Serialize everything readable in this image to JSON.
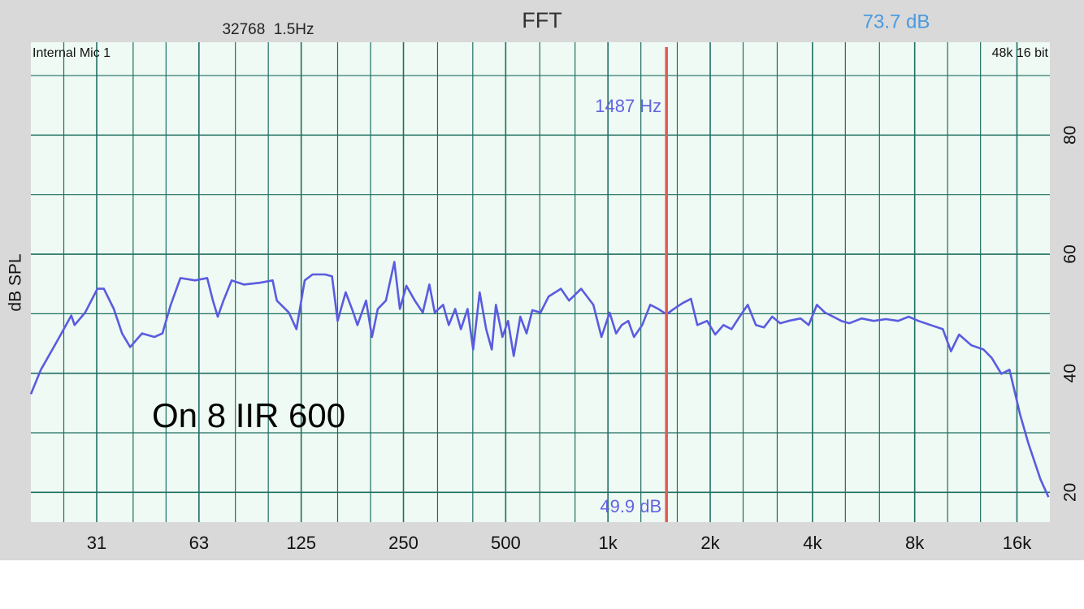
{
  "chart_data": {
    "type": "line",
    "title": "FFT",
    "header_left": "32768  1.5Hz",
    "header_right": "73.7 dB",
    "input_label": "Internal Mic 1",
    "format_label": "48k 16 bit",
    "annotation": "On 8 IIR 600",
    "y_label": "dB SPL",
    "x_scale": "log",
    "grid": true,
    "xlim": [
      20,
      20000
    ],
    "ylim": [
      15,
      95.6
    ],
    "xticks": [
      {
        "value": 31.25,
        "label": "31"
      },
      {
        "value": 62.5,
        "label": "63"
      },
      125,
      250,
      500,
      {
        "value": 1000,
        "label": "1k"
      },
      {
        "value": 2000,
        "label": "2k"
      },
      {
        "value": 4000,
        "label": "4k"
      },
      {
        "value": 8000,
        "label": "8k"
      },
      {
        "value": 16000,
        "label": "16k"
      }
    ],
    "x_minor_ticks": [
      25,
      40,
      50,
      80,
      100,
      160,
      200,
      315,
      400,
      630,
      800,
      1250,
      1600,
      2500,
      3150,
      5000,
      6300,
      10000,
      12500
    ],
    "yticks": [
      20,
      40,
      60,
      80
    ],
    "y_minor_ticks": [
      30,
      50,
      70,
      90
    ],
    "cursor": {
      "x": 1487,
      "label": "1487 Hz",
      "value": 49.9,
      "value_label": "49.9 dB",
      "color": "#e05a52"
    },
    "series": [
      {
        "color": "#5b5be0",
        "x": [
          20,
          21.4,
          23.9,
          26.3,
          26.9,
          28.9,
          31.4,
          32.8,
          35.1,
          37.1,
          39.2,
          42.5,
          46.2,
          48.8,
          51.6,
          55.1,
          60.9,
          66.1,
          68.7,
          71.0,
          73.8,
          78.0,
          84.7,
          94.6,
          103,
          106,
          115,
          121,
          128,
          135,
          147,
          154,
          160,
          169,
          178,
          183,
          194,
          202,
          210,
          222,
          235,
          244,
          255,
          270,
          285,
          298,
          309,
          327,
          340,
          355,
          369,
          386,
          401,
          419,
          438,
          455,
          468,
          489,
          508,
          528,
          552,
          576,
          599,
          633,
          669,
          727,
          768,
          834,
          906,
          957,
          1011,
          1057,
          1098,
          1148,
          1193,
          1261,
          1332,
          1407,
          1487,
          1571,
          1660,
          1755,
          1833,
          1959,
          2070,
          2188,
          2310,
          2442,
          2580,
          2726,
          2880,
          3044,
          3216,
          3399,
          3692,
          3900,
          4122,
          4354,
          4602,
          4862,
          5138,
          5580,
          6060,
          6580,
          7152,
          7680,
          8204,
          8914,
          9682,
          10230,
          10808,
          11740,
          12750,
          13472,
          14392,
          15210,
          15716,
          16340,
          17270,
          18758,
          19814
        ],
        "values": [
          36.5,
          40.6,
          45.4,
          49.7,
          48.1,
          50.2,
          54.2,
          54.2,
          50.8,
          46.7,
          44.4,
          46.7,
          46.1,
          46.7,
          51.5,
          56.0,
          55.6,
          56.0,
          52.2,
          49.5,
          52.2,
          55.6,
          54.9,
          55.2,
          55.6,
          52.2,
          50.2,
          47.4,
          55.6,
          56.6,
          56.6,
          56.3,
          48.8,
          53.6,
          50.2,
          48.1,
          52.2,
          46.1,
          50.8,
          52.2,
          58.7,
          50.8,
          54.7,
          52.2,
          50.2,
          54.9,
          50.2,
          51.5,
          48.1,
          50.8,
          47.4,
          50.8,
          44.0,
          53.6,
          47.4,
          44.0,
          51.5,
          46.1,
          48.8,
          42.9,
          49.5,
          46.7,
          50.6,
          50.2,
          52.9,
          54.2,
          52.2,
          54.2,
          51.5,
          46.1,
          50.2,
          46.7,
          48.1,
          48.8,
          46.1,
          48.1,
          51.5,
          50.8,
          49.9,
          50.9,
          51.8,
          52.5,
          48.1,
          48.8,
          46.5,
          48.1,
          47.4,
          49.5,
          51.5,
          48.1,
          47.7,
          49.5,
          48.4,
          48.8,
          49.2,
          48.1,
          51.5,
          50.2,
          49.5,
          48.8,
          48.4,
          49.2,
          48.8,
          49.1,
          48.8,
          49.5,
          48.8,
          48.1,
          47.4,
          43.7,
          46.5,
          44.7,
          44.0,
          42.6,
          39.9,
          40.6,
          37.2,
          33.1,
          28.3,
          22.2,
          19.2
        ]
      }
    ]
  }
}
